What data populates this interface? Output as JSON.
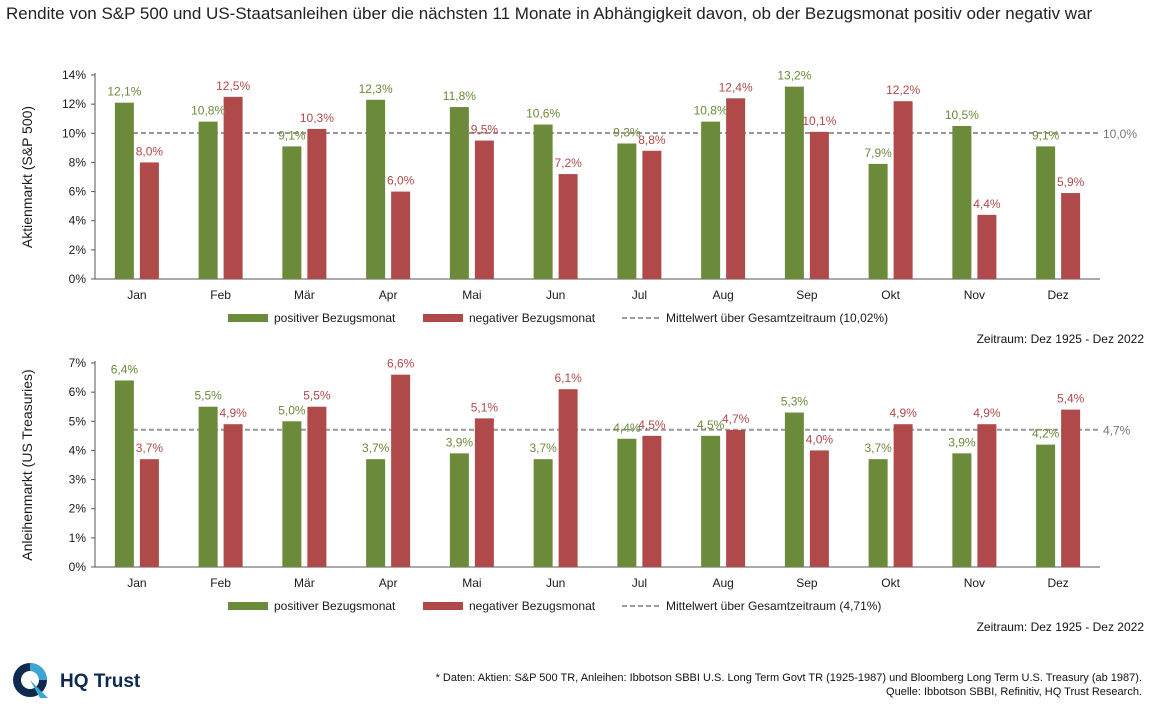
{
  "title": "Rendite von S&P 500 und US-Staatsanleihen über die nächsten 11 Monate in Abhängigkeit davon, ob der Bezugsmonat positiv oder negativ war",
  "colors": {
    "positive": "#6b8a3a",
    "negative": "#b04a4a",
    "mean_line": "#999999",
    "pos_label": "#6b8a3a",
    "neg_label": "#b04a4a"
  },
  "chart_data": [
    {
      "type": "bar",
      "ylabel": "Aktienmarkt (S&P 500)",
      "ylim": [
        0,
        14
      ],
      "ytick_values": [
        0,
        2,
        4,
        6,
        8,
        10,
        12,
        14
      ],
      "ytick_labels": [
        "0%",
        "2%",
        "4%",
        "6%",
        "8%",
        "10%",
        "12%",
        "14%"
      ],
      "categories": [
        "Jan",
        "Feb",
        "Mär",
        "Apr",
        "Mai",
        "Jun",
        "Jul",
        "Aug",
        "Sep",
        "Okt",
        "Nov",
        "Dez"
      ],
      "series": [
        {
          "name": "positiver Bezugsmonat",
          "values": [
            12.1,
            10.8,
            9.1,
            12.3,
            11.8,
            10.6,
            9.3,
            10.8,
            13.2,
            7.9,
            10.5,
            9.1
          ],
          "labels": [
            "12,1%",
            "10,8%",
            "9,1%",
            "12,3%",
            "11,8%",
            "10,6%",
            "9,3%",
            "10,8%",
            "13,2%",
            "7,9%",
            "10,5%",
            "9,1%"
          ]
        },
        {
          "name": "negativer Bezugsmonat",
          "values": [
            8.0,
            12.5,
            10.3,
            6.0,
            9.5,
            7.2,
            8.8,
            12.4,
            10.1,
            12.2,
            4.4,
            5.9
          ],
          "labels": [
            "8,0%",
            "12,5%",
            "10,3%",
            "6,0%",
            "9,5%",
            "7,2%",
            "8,8%",
            "12,4%",
            "10,1%",
            "12,2%",
            "4,4%",
            "5,9%"
          ]
        }
      ],
      "mean": {
        "name": "Mittelwert über Gesamtzeitraum (10,02%)",
        "value": 10.02,
        "label": "10,0%"
      },
      "legend_position": "bottom",
      "grid": false,
      "note": "Zeitraum: Dez 1925 - Dez 2022"
    },
    {
      "type": "bar",
      "ylabel": "Anleihenmarkt (US Treasuries)",
      "ylim": [
        0,
        7
      ],
      "ytick_values": [
        0,
        1,
        2,
        3,
        4,
        5,
        6,
        7
      ],
      "ytick_labels": [
        "0%",
        "1%",
        "2%",
        "3%",
        "4%",
        "5%",
        "6%",
        "7%"
      ],
      "categories": [
        "Jan",
        "Feb",
        "Mär",
        "Apr",
        "Mai",
        "Jun",
        "Jul",
        "Aug",
        "Sep",
        "Okt",
        "Nov",
        "Dez"
      ],
      "series": [
        {
          "name": "positiver Bezugsmonat",
          "values": [
            6.4,
            5.5,
            5.0,
            3.7,
            3.9,
            3.7,
            4.4,
            4.5,
            5.3,
            3.7,
            3.9,
            4.2
          ],
          "labels": [
            "6,4%",
            "5,5%",
            "5,0%",
            "3,7%",
            "3,9%",
            "3,7%",
            "4,4%",
            "4,5%",
            "5,3%",
            "3,7%",
            "3,9%",
            "4,2%"
          ]
        },
        {
          "name": "negativer Bezugsmonat",
          "values": [
            3.7,
            4.9,
            5.5,
            6.6,
            5.1,
            6.1,
            4.5,
            4.7,
            4.0,
            4.9,
            4.9,
            5.4
          ],
          "labels": [
            "3,7%",
            "4,9%",
            "5,5%",
            "6,6%",
            "5,1%",
            "6,1%",
            "4,5%",
            "4,7%",
            "4,0%",
            "4,9%",
            "4,9%",
            "5,4%"
          ]
        }
      ],
      "mean": {
        "name": "Mittelwert über Gesamtzeitraum (4,71%)",
        "value": 4.71,
        "label": "4,7%"
      },
      "legend_position": "bottom",
      "grid": false,
      "note": "Zeitraum: Dez 1925 - Dez 2022"
    }
  ],
  "logo": {
    "text": "HQ Trust"
  },
  "footer": {
    "line1": "* Daten: Aktien: S&P 500 TR, Anleihen: Ibbotson SBBI U.S. Long Term Govt TR (1925-1987) und Bloomberg Long Term U.S. Treasury (ab 1987).",
    "line2": "Quelle: Ibbotson SBBI, Refinitiv, HQ Trust Research."
  }
}
